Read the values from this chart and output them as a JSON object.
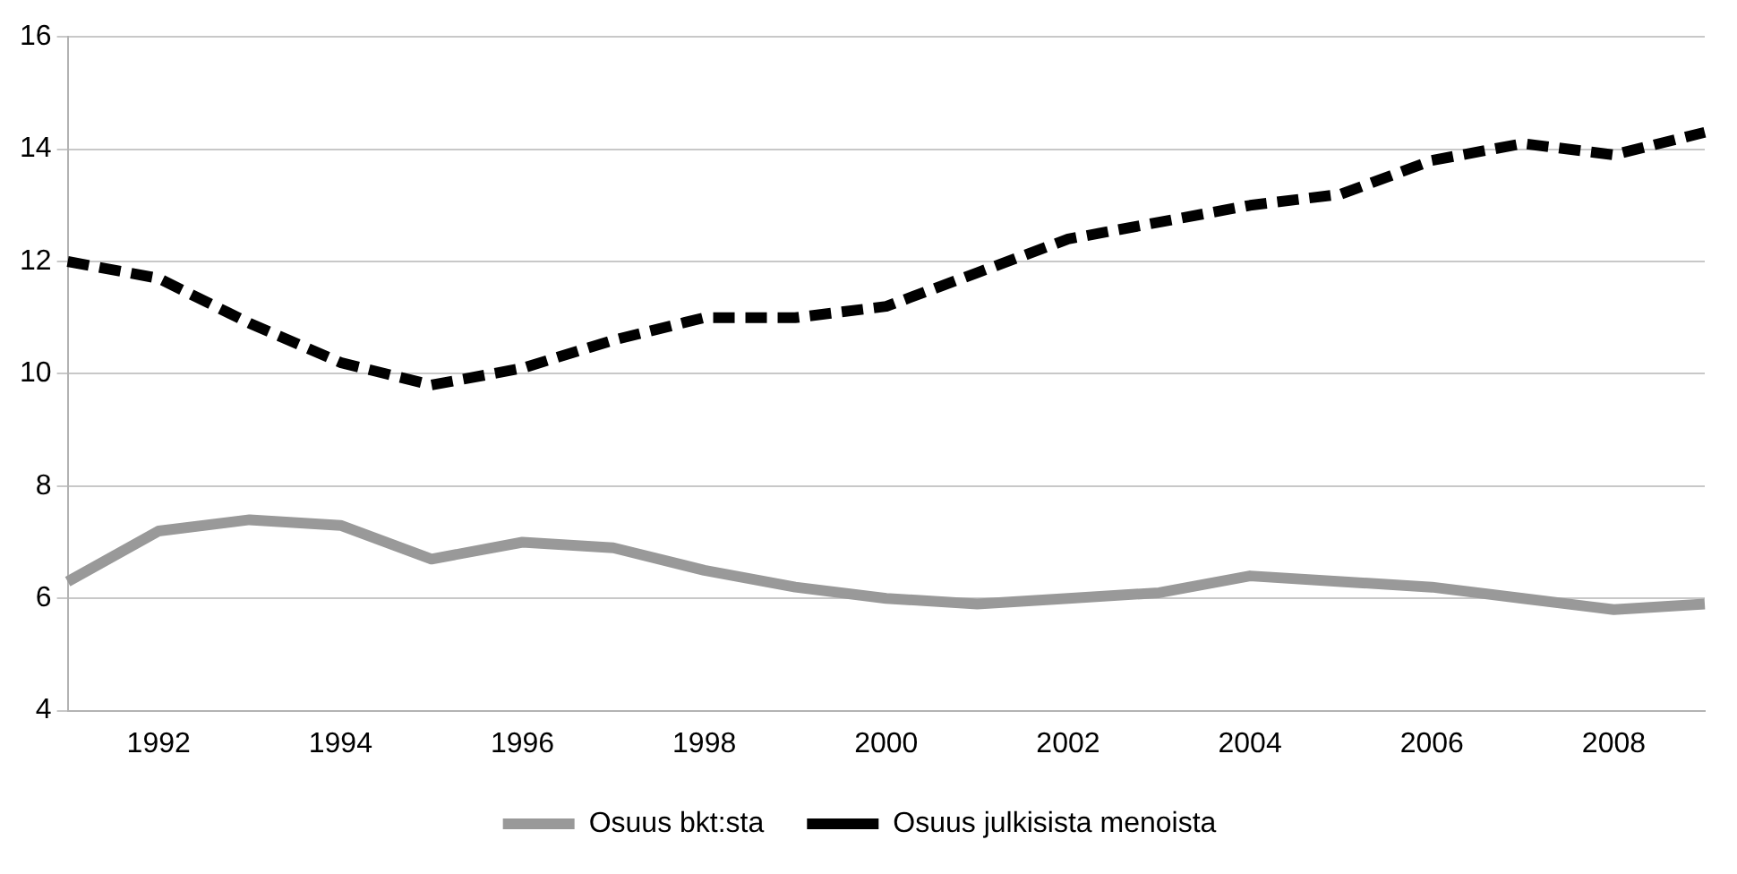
{
  "chart_data": {
    "type": "line",
    "categories": [
      null,
      "1992",
      null,
      "1994",
      null,
      "1996",
      null,
      "1998",
      null,
      "2000",
      null,
      "2002",
      null,
      "2004",
      null,
      "2006",
      null,
      "2008",
      null
    ],
    "series": [
      {
        "name": "Osuus bkt:sta",
        "color": "#999999",
        "line_style": "solid",
        "values": [
          6.3,
          7.2,
          7.4,
          7.3,
          6.7,
          7.0,
          6.9,
          6.5,
          6.2,
          6.0,
          5.9,
          6.0,
          6.1,
          6.4,
          6.3,
          6.2,
          6.0,
          5.8,
          5.9
        ]
      },
      {
        "name": "Osuus julkisista menoista",
        "color": "#000000",
        "line_style": "dashed",
        "values": [
          12.0,
          11.7,
          10.9,
          10.2,
          9.8,
          10.1,
          10.6,
          11.0,
          11.0,
          11.2,
          11.8,
          12.4,
          12.7,
          13.0,
          13.2,
          13.8,
          14.1,
          13.9,
          14.3
        ]
      }
    ],
    "ylim": [
      4,
      16
    ],
    "yticks": [
      4,
      6,
      8,
      10,
      12,
      14,
      16
    ],
    "grid": "y",
    "legend": "bottom",
    "marker": "none"
  }
}
